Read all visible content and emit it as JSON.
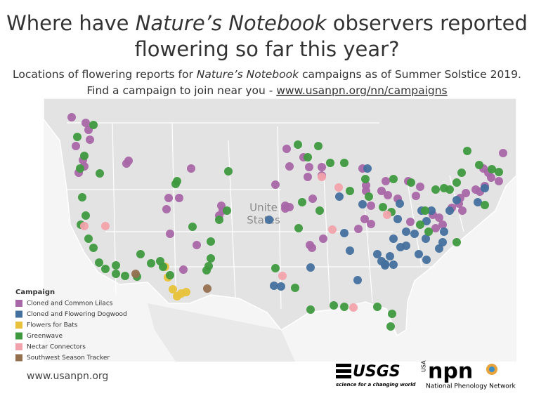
{
  "header": {
    "title": {
      "before": "Where have ",
      "italic": "Nature’s Notebook",
      "after": " observers reported",
      "line2": "flowering so far this year?"
    },
    "subtitle": {
      "before": "Locations of flowering reports for ",
      "italic": "Nature’s Notebook",
      "after": " campaigns as of Summer Solstice 2019.",
      "line2": "Find a campaign to join near you - ",
      "link": "www.usanpn.org/nn/campaigns"
    }
  },
  "map": {
    "label": [
      "Unite",
      "States"
    ]
  },
  "legend": {
    "title": "Campaign",
    "items": [
      {
        "name": "Cloned and Common Lilacs",
        "color": "#a867a6"
      },
      {
        "name": "Cloned and Flowering Dogwood",
        "color": "#44709e"
      },
      {
        "name": "Flowers for Bats",
        "color": "#e8c23a"
      },
      {
        "name": "Greenwave",
        "color": "#3f9a3f"
      },
      {
        "name": "Nectar Connectors",
        "color": "#f2a2ab"
      },
      {
        "name": "Southwest Season Tracker",
        "color": "#94704f"
      }
    ]
  },
  "footer": {
    "url": "www.usanpn.org",
    "usgs": "USGS",
    "usgs_tag": "science for a changing world",
    "npn_usa": "USA",
    "npn": "npn",
    "npn_name": "National Phenology Network"
  }
}
